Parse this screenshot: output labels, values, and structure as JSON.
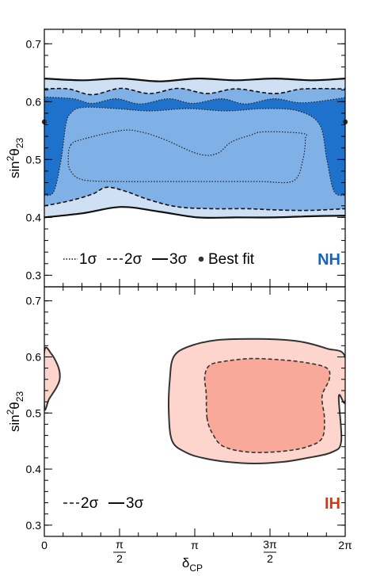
{
  "colors": {
    "nh_3sigma": "#cfe0f5",
    "nh_2sigma": "#7fb0e6",
    "nh_1sigma": "#1f72cc",
    "ih_3sigma": "#fdd5cc",
    "ih_2sigma": "#f8a99a",
    "nh_tag": "#1565c0",
    "ih_tag": "#d03a10"
  },
  "chart_data": [
    {
      "type": "contour",
      "panel": "top",
      "tag": "NH",
      "xlabel": "",
      "ylabel": "sin²θ₂₃",
      "xlim": [
        0,
        6.2832
      ],
      "ylim": [
        0.28,
        0.725
      ],
      "yticks": [
        {
          "value": 0.3,
          "label": "0.3"
        },
        {
          "value": 0.4,
          "label": "0.4"
        },
        {
          "value": 0.5,
          "label": "0.5"
        },
        {
          "value": 0.6,
          "label": "0.6"
        },
        {
          "value": 0.7,
          "label": "0.7"
        }
      ],
      "best_fit": {
        "x": 0.0,
        "y": 0.565
      },
      "legend": {
        "placement": "bottom",
        "items": [
          {
            "label": "1σ",
            "style": "dotted"
          },
          {
            "label": "2σ",
            "style": "dashed"
          },
          {
            "label": "3σ",
            "style": "solid"
          },
          {
            "label": "Best fit",
            "style": "point"
          }
        ]
      },
      "regions": {
        "3sigma": {
          "upper": [
            [
              0,
              0.64
            ],
            [
              0.8,
              0.637
            ],
            [
              1.6,
              0.64
            ],
            [
              2.4,
              0.635
            ],
            [
              3.2,
              0.64
            ],
            [
              4.0,
              0.637
            ],
            [
              4.8,
              0.64
            ],
            [
              5.6,
              0.637
            ],
            [
              6.2832,
              0.64
            ]
          ],
          "lower": [
            [
              0,
              0.4
            ],
            [
              0.8,
              0.407
            ],
            [
              1.6,
              0.418
            ],
            [
              2.4,
              0.41
            ],
            [
              3.2,
              0.4
            ],
            [
              4.0,
              0.4
            ],
            [
              4.8,
              0.4
            ],
            [
              5.6,
              0.402
            ],
            [
              6.2832,
              0.403
            ]
          ]
        },
        "2sigma": {
          "upper": [
            [
              0,
              0.622
            ],
            [
              0.5,
              0.622
            ],
            [
              1.0,
              0.612
            ],
            [
              1.6,
              0.623
            ],
            [
              2.2,
              0.614
            ],
            [
              2.8,
              0.623
            ],
            [
              3.4,
              0.614
            ],
            [
              4.0,
              0.622
            ],
            [
              4.8,
              0.614
            ],
            [
              5.4,
              0.622
            ],
            [
              6.2832,
              0.622
            ]
          ],
          "lower": [
            [
              0,
              0.42
            ],
            [
              0.5,
              0.428
            ],
            [
              1.0,
              0.44
            ],
            [
              1.3,
              0.452
            ],
            [
              1.7,
              0.445
            ],
            [
              2.2,
              0.43
            ],
            [
              2.8,
              0.418
            ],
            [
              3.5,
              0.415
            ],
            [
              4.2,
              0.415
            ],
            [
              4.8,
              0.413
            ],
            [
              5.5,
              0.412
            ],
            [
              6.2832,
              0.415
            ]
          ]
        },
        "1sigma_top": {
          "upper": [
            [
              0,
              0.608
            ],
            [
              0.6,
              0.605
            ],
            [
              1.0,
              0.597
            ],
            [
              1.5,
              0.605
            ],
            [
              2.0,
              0.596
            ],
            [
              2.6,
              0.605
            ],
            [
              3.1,
              0.597
            ],
            [
              3.7,
              0.605
            ],
            [
              4.2,
              0.596
            ],
            [
              4.8,
              0.605
            ],
            [
              5.4,
              0.598
            ],
            [
              6.2832,
              0.607
            ]
          ],
          "lower": [
            [
              0,
              0.438
            ],
            [
              0.2,
              0.445
            ],
            [
              0.35,
              0.5
            ],
            [
              0.45,
              0.56
            ],
            [
              0.55,
              0.58
            ],
            [
              0.8,
              0.59
            ],
            [
              1.5,
              0.588
            ],
            [
              2.2,
              0.584
            ],
            [
              3.0,
              0.588
            ],
            [
              3.8,
              0.584
            ],
            [
              4.6,
              0.588
            ],
            [
              5.3,
              0.584
            ],
            [
              5.75,
              0.56
            ],
            [
              5.9,
              0.5
            ],
            [
              6.05,
              0.445
            ],
            [
              6.2832,
              0.438
            ]
          ]
        },
        "1sigma_inner": {
          "upper": [
            [
              0.55,
              0.525
            ],
            [
              0.8,
              0.535
            ],
            [
              1.6,
              0.55
            ],
            [
              2.0,
              0.548
            ],
            [
              2.5,
              0.535
            ],
            [
              3.2,
              0.51
            ],
            [
              3.6,
              0.51
            ],
            [
              3.9,
              0.53
            ],
            [
              4.3,
              0.542
            ],
            [
              4.6,
              0.548
            ],
            [
              5.4,
              0.545
            ],
            [
              5.45,
              0.535
            ]
          ],
          "lower": [
            [
              0.55,
              0.525
            ],
            [
              0.5,
              0.5
            ],
            [
              0.55,
              0.48
            ],
            [
              0.8,
              0.465
            ],
            [
              1.5,
              0.462
            ],
            [
              2.5,
              0.462
            ],
            [
              3.5,
              0.462
            ],
            [
              4.5,
              0.462
            ],
            [
              5.2,
              0.463
            ],
            [
              5.4,
              0.5
            ],
            [
              5.45,
              0.535
            ]
          ]
        }
      }
    },
    {
      "type": "contour",
      "panel": "bottom",
      "tag": "IH",
      "xlabel": "δCP",
      "ylabel": "sin²θ₂₃",
      "xlim": [
        0,
        6.2832
      ],
      "ylim": [
        0.28,
        0.725
      ],
      "xticks": [
        {
          "value": 0,
          "label": "0"
        },
        {
          "value": 1.5708,
          "label": "π/2"
        },
        {
          "value": 3.1416,
          "label": "π"
        },
        {
          "value": 4.7124,
          "label": "3π/2"
        },
        {
          "value": 6.2832,
          "label": "2π"
        }
      ],
      "yticks": [
        {
          "value": 0.3,
          "label": "0.3"
        },
        {
          "value": 0.4,
          "label": "0.4"
        },
        {
          "value": 0.5,
          "label": "0.5"
        },
        {
          "value": 0.6,
          "label": "0.6"
        },
        {
          "value": 0.7,
          "label": "0.7"
        }
      ],
      "legend": {
        "placement": "bottom",
        "items": [
          {
            "label": "2σ",
            "style": "dashed"
          },
          {
            "label": "3σ",
            "style": "solid"
          }
        ]
      },
      "regions": {
        "3sigma_left": [
          [
            0,
            0.61
          ],
          [
            0.15,
            0.605
          ],
          [
            0.3,
            0.58
          ],
          [
            0.32,
            0.56
          ],
          [
            0.25,
            0.545
          ],
          [
            0.1,
            0.525
          ],
          [
            0,
            0.51
          ]
        ],
        "3sigma_main": [
          [
            2.67,
            0.45
          ],
          [
            2.6,
            0.5
          ],
          [
            2.62,
            0.56
          ],
          [
            2.7,
            0.6
          ],
          [
            3.0,
            0.618
          ],
          [
            3.6,
            0.63
          ],
          [
            4.5,
            0.632
          ],
          [
            5.3,
            0.628
          ],
          [
            5.9,
            0.615
          ],
          [
            6.2832,
            0.6
          ],
          [
            6.2832,
            0.52
          ],
          [
            6.15,
            0.53
          ],
          [
            6.2,
            0.45
          ],
          [
            6.0,
            0.43
          ],
          [
            5.5,
            0.42
          ],
          [
            5.0,
            0.413
          ],
          [
            4.4,
            0.41
          ],
          [
            3.8,
            0.413
          ],
          [
            3.3,
            0.42
          ],
          [
            2.95,
            0.43
          ]
        ],
        "2sigma_main": [
          [
            3.4,
            0.49
          ],
          [
            3.38,
            0.535
          ],
          [
            3.35,
            0.565
          ],
          [
            3.45,
            0.585
          ],
          [
            3.75,
            0.592
          ],
          [
            4.3,
            0.597
          ],
          [
            4.9,
            0.595
          ],
          [
            5.45,
            0.59
          ],
          [
            5.9,
            0.58
          ],
          [
            5.95,
            0.56
          ],
          [
            5.8,
            0.53
          ],
          [
            5.85,
            0.49
          ],
          [
            5.8,
            0.455
          ],
          [
            5.5,
            0.44
          ],
          [
            5.0,
            0.432
          ],
          [
            4.3,
            0.43
          ],
          [
            3.75,
            0.44
          ],
          [
            3.52,
            0.462
          ]
        ]
      }
    }
  ]
}
